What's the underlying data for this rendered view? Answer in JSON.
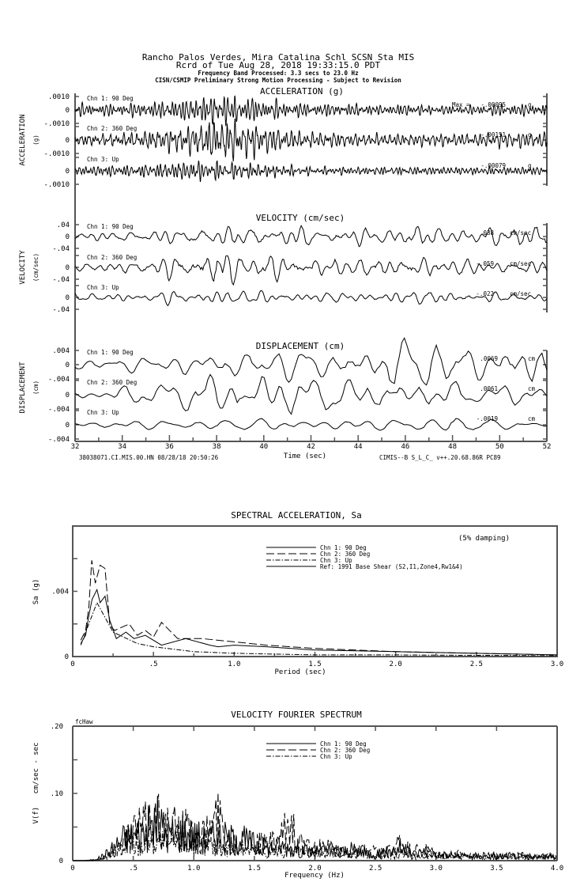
{
  "header": {
    "line1": "Rancho Palos Verdes, Mira Catalina Schl    SCSN Sta MIS",
    "line2": "Rcrd of Tue Aug 28, 2018 19:33:15.0 PDT",
    "line3": "Frequency Band Processed: 3.3 secs to 23.0 Hz",
    "line4": "CISN/CSMIP Preliminary Strong Motion Processing - Subject to Revision"
  },
  "footer": {
    "left": "38038071.CI.MIS.00.HN 08/28/18 20:50:26",
    "right": "CIMIS--B  S_L_C_  v++.20.68.86R PC89"
  },
  "chart_data": [
    {
      "type": "line",
      "title": "ACCELERATION (g)",
      "ylabel": "ACCELERATION",
      "yunit": "(g)",
      "xlabel": "Time (sec)",
      "xlim": [
        32,
        52
      ],
      "xticks": [
        "32",
        "34",
        "36",
        "38",
        "40",
        "42",
        "44",
        "46",
        "48",
        "50",
        "52"
      ],
      "ylim": [
        -0.001,
        0.001
      ],
      "ytick_labels": [
        ".0010",
        "0",
        "-.0010"
      ],
      "max_prefix": "Max =",
      "unit": "g",
      "dominant_freq_hz": 6,
      "envelope_times": [
        32,
        33,
        34,
        35,
        36,
        37,
        38,
        39,
        40,
        41,
        42,
        43,
        44,
        45,
        46,
        47,
        48,
        49,
        50,
        51,
        52
      ],
      "series": [
        {
          "name": "Chn 1: 90 Deg",
          "max": "-.00095",
          "envelope": [
            0.0004,
            0.0004,
            0.0004,
            0.0005,
            0.0006,
            0.0008,
            0.001,
            0.0009,
            0.0007,
            0.0005,
            0.0004,
            0.0004,
            0.0004,
            0.0003,
            0.0004,
            0.0003,
            0.0003,
            0.0003,
            0.0004,
            0.0004,
            0.0004
          ]
        },
        {
          "name": "Chn 2: 360 Deg",
          "max": "-.00151",
          "envelope": [
            0.0004,
            0.0005,
            0.0005,
            0.0007,
            0.0009,
            0.0011,
            0.0015,
            0.0014,
            0.001,
            0.0007,
            0.0005,
            0.0005,
            0.0004,
            0.0004,
            0.0004,
            0.0004,
            0.0004,
            0.0004,
            0.0005,
            0.0005,
            0.0005
          ]
        },
        {
          "name": "Chn 3: Up",
          "max": "-.00079",
          "envelope": [
            0.0003,
            0.0004,
            0.0004,
            0.0005,
            0.0006,
            0.0008,
            0.0007,
            0.0006,
            0.0005,
            0.0004,
            0.0003,
            0.0003,
            0.0003,
            0.0003,
            0.0003,
            0.0003,
            0.0003,
            0.0003,
            0.0003,
            0.0003,
            0.0003
          ]
        }
      ]
    },
    {
      "type": "line",
      "title": "VELOCITY (cm/sec)",
      "ylabel": "VELOCITY",
      "yunit": "(cm/sec)",
      "xlim": [
        32,
        52
      ],
      "ylim": [
        -0.04,
        0.04
      ],
      "ytick_labels": [
        ".04",
        "0",
        "-.04"
      ],
      "unit": "cm/sec",
      "dominant_freq_hz": 1.8,
      "envelope_times": [
        32,
        33,
        34,
        35,
        36,
        37,
        38,
        39,
        40,
        41,
        42,
        43,
        44,
        45,
        46,
        47,
        48,
        49,
        50,
        51,
        52
      ],
      "series": [
        {
          "name": "Chn 1: 90 Deg",
          "max": ".038",
          "envelope": [
            0.012,
            0.014,
            0.016,
            0.018,
            0.022,
            0.026,
            0.03,
            0.03,
            0.026,
            0.032,
            0.028,
            0.022,
            0.024,
            0.03,
            0.034,
            0.03,
            0.028,
            0.026,
            0.032,
            0.036,
            0.034
          ]
        },
        {
          "name": "Chn 2: 360 Deg",
          "max": "-.059",
          "envelope": [
            0.014,
            0.016,
            0.02,
            0.026,
            0.034,
            0.044,
            0.059,
            0.05,
            0.044,
            0.04,
            0.036,
            0.03,
            0.03,
            0.028,
            0.03,
            0.032,
            0.026,
            0.026,
            0.022,
            0.022,
            0.022
          ]
        },
        {
          "name": "Chn 3: Up",
          "max": "-.022",
          "envelope": [
            0.008,
            0.009,
            0.01,
            0.012,
            0.014,
            0.016,
            0.018,
            0.016,
            0.014,
            0.012,
            0.012,
            0.011,
            0.01,
            0.012,
            0.014,
            0.016,
            0.012,
            0.01,
            0.01,
            0.01,
            0.01
          ]
        }
      ]
    },
    {
      "type": "line",
      "title": "DISPLACEMENT (cm)",
      "ylabel": "DISPLACEMENT",
      "yunit": "(cm)",
      "xlim": [
        32,
        52
      ],
      "ylim": [
        -0.004,
        0.004
      ],
      "ytick_labels": [
        ".004",
        "0",
        "-.004"
      ],
      "unit": "cm",
      "dominant_freq_hz": 0.8,
      "envelope_times": [
        32,
        33,
        34,
        35,
        36,
        37,
        38,
        39,
        40,
        41,
        42,
        43,
        44,
        45,
        46,
        47,
        48,
        49,
        50,
        51,
        52
      ],
      "series": [
        {
          "name": "Chn 1: 90 Deg",
          "max": ".0069",
          "envelope": [
            0.0012,
            0.0015,
            0.0018,
            0.002,
            0.0024,
            0.0028,
            0.003,
            0.003,
            0.0032,
            0.0036,
            0.003,
            0.0028,
            0.0034,
            0.005,
            0.0069,
            0.005,
            0.004,
            0.0036,
            0.004,
            0.0065,
            0.005
          ]
        },
        {
          "name": "Chn 2: 360 Deg",
          "max": ".0061",
          "envelope": [
            0.0012,
            0.0015,
            0.002,
            0.0028,
            0.0036,
            0.0044,
            0.005,
            0.0055,
            0.0061,
            0.0056,
            0.0048,
            0.004,
            0.0036,
            0.0034,
            0.0036,
            0.0034,
            0.003,
            0.0026,
            0.0024,
            0.0022,
            0.002
          ]
        },
        {
          "name": "Chn 3: Up",
          "max": "-.0019",
          "envelope": [
            0.0008,
            0.0008,
            0.0009,
            0.001,
            0.0011,
            0.0012,
            0.0013,
            0.0014,
            0.0015,
            0.0016,
            0.0015,
            0.0014,
            0.0013,
            0.0012,
            0.0014,
            0.0016,
            0.0019,
            0.0016,
            0.0013,
            0.0012,
            0.0012
          ]
        }
      ]
    },
    {
      "type": "line",
      "title": "SPECTRAL ACCELERATION, Sa",
      "xlabel": "Period (sec)",
      "ylabel": "Sa (g)",
      "annotation": "(5% damping)",
      "xlim": [
        0,
        3.0
      ],
      "ylim": [
        0,
        0.008
      ],
      "xticks": [
        "0",
        ".5",
        "1.0",
        "1.5",
        "2.0",
        "2.5",
        "3.0"
      ],
      "yticks": [
        "0",
        ".004"
      ],
      "legend_position": "top-center",
      "series": [
        {
          "name": "Chn 1: 90 Deg",
          "style": "solid",
          "points": [
            [
              0.05,
              0.0008
            ],
            [
              0.08,
              0.0013
            ],
            [
              0.1,
              0.0025
            ],
            [
              0.12,
              0.0035
            ],
            [
              0.15,
              0.0041
            ],
            [
              0.17,
              0.0033
            ],
            [
              0.2,
              0.0037
            ],
            [
              0.23,
              0.0022
            ],
            [
              0.27,
              0.0011
            ],
            [
              0.33,
              0.0015
            ],
            [
              0.38,
              0.0011
            ],
            [
              0.45,
              0.0013
            ],
            [
              0.55,
              0.0007
            ],
            [
              0.7,
              0.0011
            ],
            [
              0.85,
              0.0007
            ],
            [
              0.9,
              0.0006
            ],
            [
              1.0,
              0.0007
            ],
            [
              1.2,
              0.0006
            ],
            [
              1.5,
              0.0004
            ],
            [
              2.0,
              0.0003
            ],
            [
              2.5,
              0.0002
            ],
            [
              3.0,
              0.0001
            ]
          ]
        },
        {
          "name": "Chn 2: 360 Deg",
          "style": "dashed",
          "points": [
            [
              0.05,
              0.001
            ],
            [
              0.08,
              0.0016
            ],
            [
              0.1,
              0.003
            ],
            [
              0.118,
              0.0059
            ],
            [
              0.14,
              0.0045
            ],
            [
              0.17,
              0.0056
            ],
            [
              0.2,
              0.0054
            ],
            [
              0.23,
              0.0019
            ],
            [
              0.26,
              0.0016
            ],
            [
              0.35,
              0.002
            ],
            [
              0.4,
              0.0013
            ],
            [
              0.45,
              0.0016
            ],
            [
              0.5,
              0.0012
            ],
            [
              0.55,
              0.0021
            ],
            [
              0.65,
              0.0011
            ],
            [
              0.8,
              0.0011
            ],
            [
              1.0,
              0.0009
            ],
            [
              1.2,
              0.0007
            ],
            [
              1.5,
              0.0005
            ],
            [
              2.0,
              0.0003
            ],
            [
              2.5,
              0.0002
            ],
            [
              3.0,
              0.0001
            ]
          ]
        },
        {
          "name": "Chn 3: Up",
          "style": "dash-dot",
          "points": [
            [
              0.05,
              0.0007
            ],
            [
              0.1,
              0.002
            ],
            [
              0.15,
              0.0033
            ],
            [
              0.2,
              0.0024
            ],
            [
              0.25,
              0.0015
            ],
            [
              0.4,
              0.0008
            ],
            [
              0.5,
              0.0006
            ],
            [
              0.75,
              0.0003
            ],
            [
              1.0,
              0.0002
            ],
            [
              1.5,
              0.0001
            ],
            [
              2.0,
              0.0001
            ],
            [
              3.0,
              5e-05
            ]
          ]
        },
        {
          "name": "Ref: 1991 Base Shear (S2,I1,Zone4,Rw1&4)",
          "style": "solid",
          "points": []
        }
      ]
    },
    {
      "type": "line",
      "title": "VELOCITY FOURIER SPECTRUM",
      "xlabel": "Frequency (Hz)",
      "ylabel": "V(f)   cm/sec - sec",
      "corner_label": "fcHaw",
      "xlim": [
        0,
        4.0
      ],
      "ylim": [
        0,
        0.2
      ],
      "xticks": [
        "0",
        ".5",
        "1.0",
        "1.5",
        "2.0",
        "2.5",
        "3.0",
        "3.5",
        "4.0"
      ],
      "yticks": [
        "0",
        ".10",
        ".20"
      ],
      "legend_position": "top-center",
      "x_step": 0.1,
      "series": [
        {
          "name": "Chn 1: 90 Deg",
          "style": "solid",
          "values": [
            0,
            0,
            0.003,
            0.02,
            0.05,
            0.06,
            0.07,
            0.09,
            0.06,
            0.07,
            0.06,
            0.05,
            0.06,
            0.05,
            0.05,
            0.04,
            0.03,
            0.035,
            0.03,
            0.025,
            0.02,
            0.025,
            0.02,
            0.025,
            0.02,
            0.015,
            0.02,
            0.03,
            0.015,
            0.02,
            0.015,
            0.012,
            0.01,
            0.012,
            0.01,
            0.01,
            0.012,
            0.01,
            0.008,
            0.01,
            0.01
          ]
        },
        {
          "name": "Chn 2: 360 Deg",
          "style": "dashed",
          "values": [
            0,
            0,
            0.002,
            0.015,
            0.04,
            0.07,
            0.08,
            0.1,
            0.07,
            0.08,
            0.06,
            0.06,
            0.1,
            0.05,
            0.05,
            0.04,
            0.04,
            0.04,
            0.09,
            0.03,
            0.03,
            0.03,
            0.02,
            0.02,
            0.025,
            0.02,
            0.02,
            0.04,
            0.02,
            0.025,
            0.015,
            0.012,
            0.015,
            0.01,
            0.012,
            0.015,
            0.01,
            0.012,
            0.01,
            0.01,
            0.01
          ]
        },
        {
          "name": "Chn 3: Up",
          "style": "dash-dot",
          "values": [
            0,
            0,
            0.001,
            0.01,
            0.03,
            0.04,
            0.04,
            0.05,
            0.04,
            0.05,
            0.04,
            0.04,
            0.03,
            0.03,
            0.03,
            0.025,
            0.02,
            0.02,
            0.02,
            0.02,
            0.015,
            0.015,
            0.02,
            0.015,
            0.015,
            0.01,
            0.012,
            0.015,
            0.01,
            0.01,
            0.012,
            0.01,
            0.01,
            0.01,
            0.008,
            0.01,
            0.008,
            0.008,
            0.01,
            0.008,
            0.006
          ]
        }
      ]
    }
  ]
}
